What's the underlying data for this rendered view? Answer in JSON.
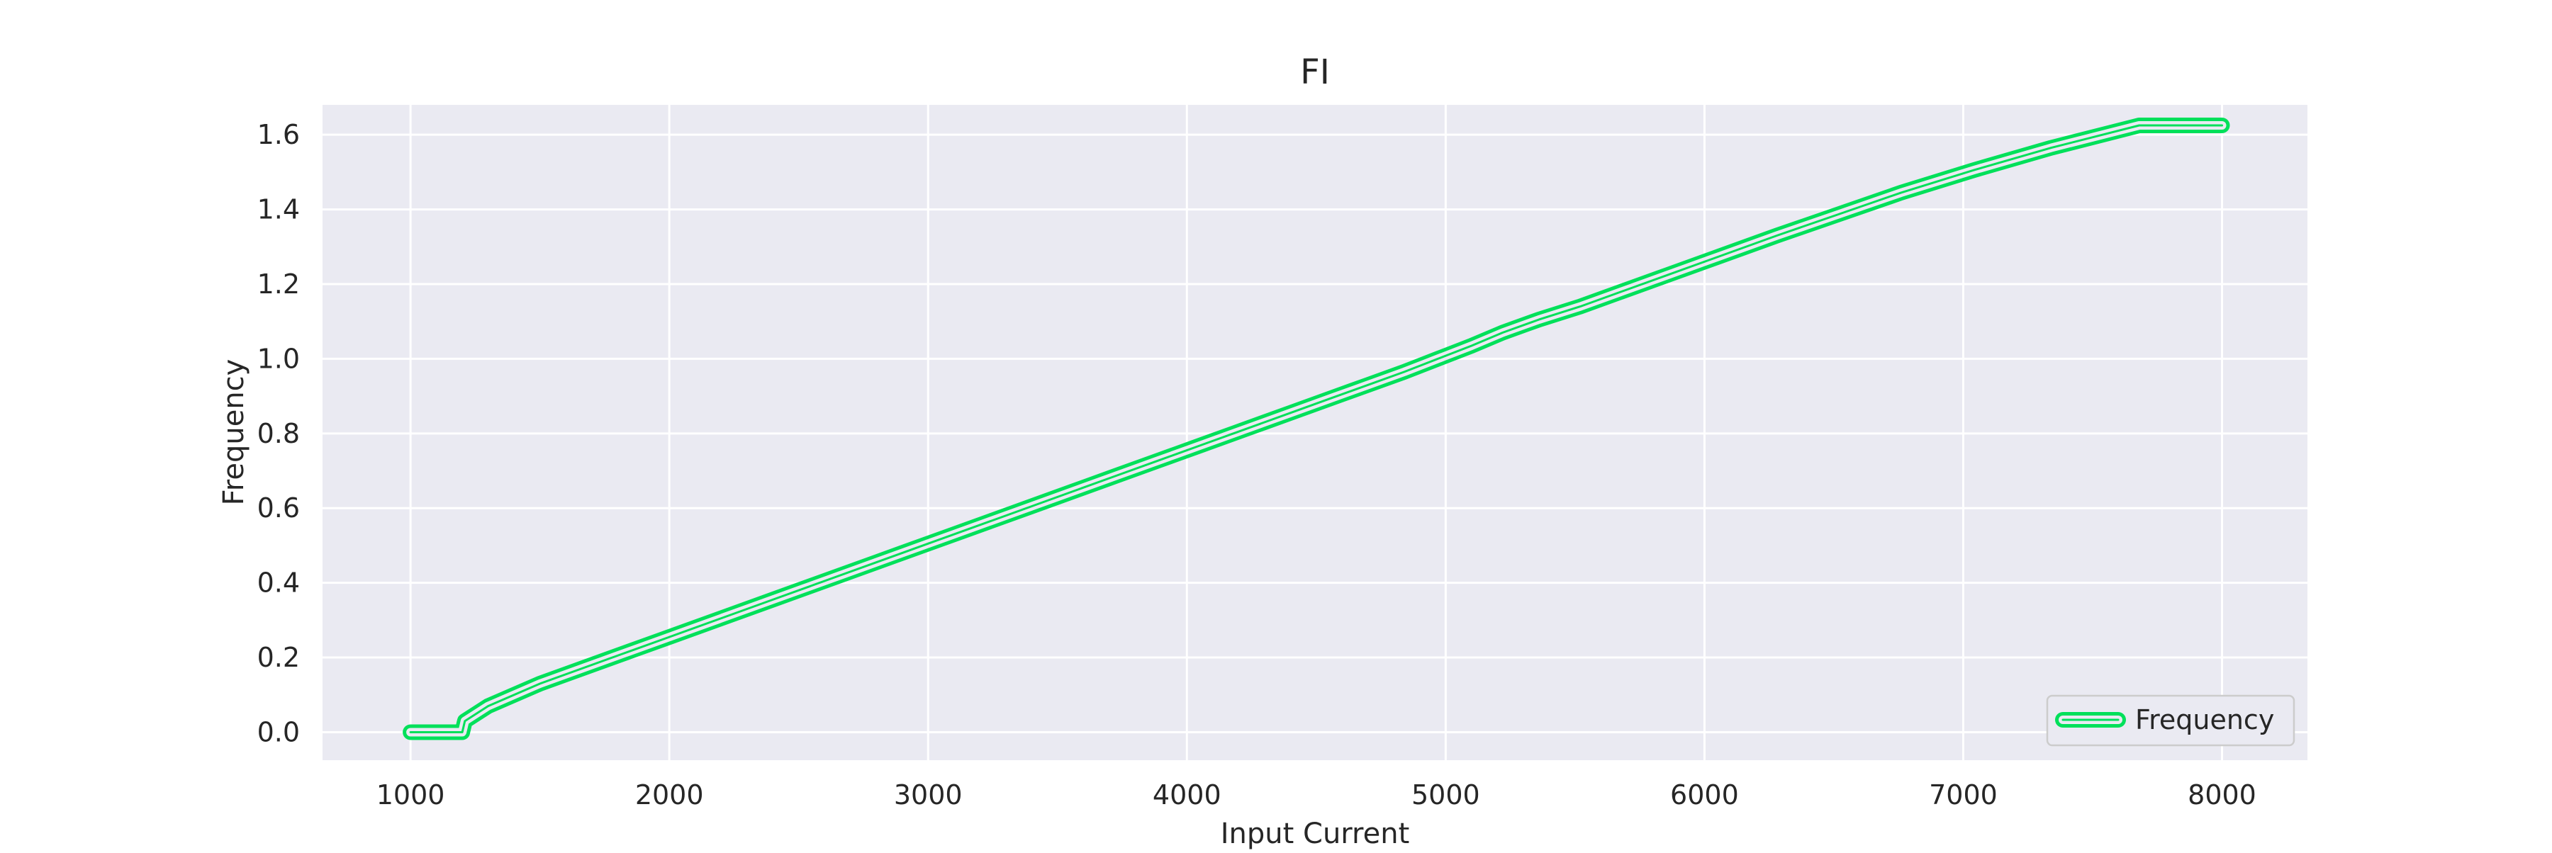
{
  "chart_data": {
    "type": "line",
    "title": "FI",
    "xlabel": "Input Current",
    "ylabel": "Frequency",
    "xlim": [
      660,
      8330
    ],
    "ylim": [
      -0.075,
      1.68
    ],
    "xticks": [
      1000,
      2000,
      3000,
      4000,
      5000,
      6000,
      7000,
      8000
    ],
    "xtick_labels": [
      "1000",
      "2000",
      "3000",
      "4000",
      "5000",
      "6000",
      "7000",
      "8000"
    ],
    "yticks": [
      0.0,
      0.2,
      0.4,
      0.6,
      0.8,
      1.0,
      1.2,
      1.4,
      1.6
    ],
    "ytick_labels": [
      "0.0",
      "0.2",
      "0.4",
      "0.6",
      "0.8",
      "1.0",
      "1.2",
      "1.4",
      "1.6"
    ],
    "grid": true,
    "legend": {
      "position": "lower-right"
    },
    "series": [
      {
        "name": "Frequency",
        "color": "#00e05a",
        "x": [
          1000,
          1200,
          1210,
          1300,
          1500,
          1800,
          2000,
          2400,
          2800,
          3000,
          3080,
          3240,
          3400,
          3560,
          3720,
          3880,
          3960,
          4060,
          4180,
          4300,
          4420,
          4560,
          4700,
          4840,
          4970,
          5100,
          5220,
          5360,
          5520,
          5680,
          5860,
          6060,
          6280,
          6510,
          6760,
          7040,
          7340,
          7680,
          8000
        ],
        "y": [
          0.0,
          0.0,
          0.03,
          0.07,
          0.13,
          0.205,
          0.255,
          0.355,
          0.455,
          0.505,
          0.525,
          0.565,
          0.605,
          0.645,
          0.685,
          0.725,
          0.745,
          0.77,
          0.8,
          0.83,
          0.86,
          0.895,
          0.93,
          0.965,
          1.0,
          1.035,
          1.07,
          1.105,
          1.14,
          1.18,
          1.225,
          1.275,
          1.33,
          1.385,
          1.445,
          1.505,
          1.565,
          1.625,
          1.625
        ]
      }
    ]
  }
}
